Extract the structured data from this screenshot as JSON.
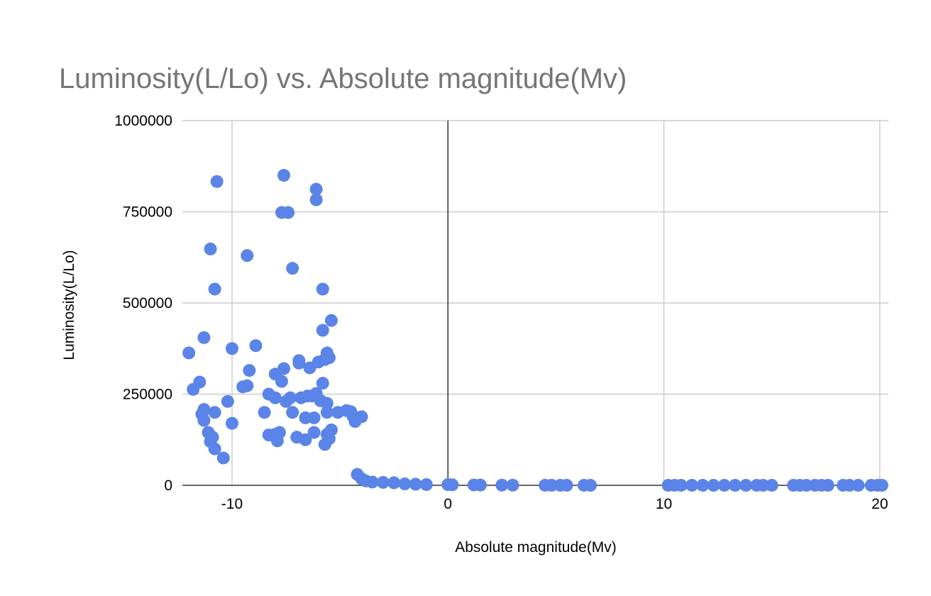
{
  "chart_data": {
    "type": "scatter",
    "title": "Luminosity(L/Lo) vs. Absolute magnitude(Mv)",
    "xlabel": "Absolute magnitude(Mv)",
    "ylabel": "Luminosity(L/Lo)",
    "xlim": [
      -12.3,
      20.4
    ],
    "ylim": [
      0,
      1000000
    ],
    "xticks": [
      -10,
      0,
      10,
      20
    ],
    "yticks": [
      0,
      250000,
      500000,
      750000,
      1000000
    ],
    "xtick_labels": [
      "-10",
      "0",
      "10",
      "20"
    ],
    "ytick_labels": [
      "0",
      "250000",
      "500000",
      "750000",
      "1000000"
    ],
    "grid": true,
    "legend": "none",
    "point_color": "#5b84e8",
    "series": [
      {
        "points": [
          [
            -12.0,
            363000
          ],
          [
            -11.8,
            263000
          ],
          [
            -11.5,
            283000
          ],
          [
            -11.3,
            405000
          ],
          [
            -11.4,
            195000
          ],
          [
            -11.3,
            208000
          ],
          [
            -11.3,
            178000
          ],
          [
            -11.1,
            145000
          ],
          [
            -11.0,
            120000
          ],
          [
            -10.9,
            132000
          ],
          [
            -10.8,
            100000
          ],
          [
            -11.0,
            648000
          ],
          [
            -10.8,
            538000
          ],
          [
            -10.7,
            833000
          ],
          [
            -10.8,
            200000
          ],
          [
            -10.4,
            75000
          ],
          [
            -10.2,
            230000
          ],
          [
            -10.0,
            375000
          ],
          [
            -10.0,
            170000
          ],
          [
            -9.5,
            270000
          ],
          [
            -9.3,
            273000
          ],
          [
            -9.3,
            630000
          ],
          [
            -9.2,
            315000
          ],
          [
            -8.9,
            383000
          ],
          [
            -8.5,
            200000
          ],
          [
            -8.3,
            138000
          ],
          [
            -8.0,
            140000
          ],
          [
            -8.3,
            250000
          ],
          [
            -8.0,
            240000
          ],
          [
            -8.0,
            305000
          ],
          [
            -7.9,
            122000
          ],
          [
            -7.8,
            145000
          ],
          [
            -7.7,
            285000
          ],
          [
            -7.6,
            320000
          ],
          [
            -7.6,
            850000
          ],
          [
            -7.7,
            748000
          ],
          [
            -7.4,
            748000
          ],
          [
            -7.5,
            230000
          ],
          [
            -7.3,
            240000
          ],
          [
            -7.2,
            595000
          ],
          [
            -7.2,
            200000
          ],
          [
            -7.0,
            132000
          ],
          [
            -6.9,
            335000
          ],
          [
            -6.9,
            342000
          ],
          [
            -6.8,
            240000
          ],
          [
            -6.6,
            125000
          ],
          [
            -6.6,
            185000
          ],
          [
            -6.5,
            245000
          ],
          [
            -6.4,
            322000
          ],
          [
            -6.3,
            245000
          ],
          [
            -6.2,
            185000
          ],
          [
            -6.2,
            145000
          ],
          [
            -6.1,
            252000
          ],
          [
            -6.0,
            338000
          ],
          [
            -6.1,
            812000
          ],
          [
            -6.1,
            783000
          ],
          [
            -5.9,
            232000
          ],
          [
            -5.8,
            280000
          ],
          [
            -5.8,
            425000
          ],
          [
            -5.8,
            538000
          ],
          [
            -5.7,
            345000
          ],
          [
            -5.6,
            363000
          ],
          [
            -5.6,
            225000
          ],
          [
            -5.6,
            200000
          ],
          [
            -5.5,
            350000
          ],
          [
            -5.7,
            112000
          ],
          [
            -5.6,
            140000
          ],
          [
            -5.5,
            128000
          ],
          [
            -5.4,
            152000
          ],
          [
            -5.4,
            452000
          ],
          [
            -5.1,
            200000
          ],
          [
            -4.7,
            205000
          ],
          [
            -4.5,
            202000
          ],
          [
            -4.4,
            190000
          ],
          [
            -4.3,
            175000
          ],
          [
            -4.0,
            188000
          ],
          [
            -4.2,
            30000
          ],
          [
            -4.0,
            18000
          ],
          [
            -3.8,
            12000
          ],
          [
            -3.5,
            9000
          ],
          [
            -3.0,
            8000
          ],
          [
            -2.5,
            7000
          ],
          [
            -2.0,
            4000
          ],
          [
            -1.5,
            3000
          ],
          [
            -1.0,
            2000
          ],
          [
            0.0,
            2000
          ],
          [
            0.2,
            1500
          ],
          [
            1.2,
            1000
          ],
          [
            1.5,
            800
          ],
          [
            2.5,
            500
          ],
          [
            3.0,
            400
          ],
          [
            4.5,
            200
          ],
          [
            4.8,
            150
          ],
          [
            5.2,
            100
          ],
          [
            5.5,
            80
          ],
          [
            6.3,
            50
          ],
          [
            6.6,
            40
          ],
          [
            10.2,
            10
          ],
          [
            10.5,
            10
          ],
          [
            10.8,
            10
          ],
          [
            11.3,
            10
          ],
          [
            11.8,
            10
          ],
          [
            12.3,
            10
          ],
          [
            12.8,
            10
          ],
          [
            13.3,
            10
          ],
          [
            13.8,
            10
          ],
          [
            14.3,
            10
          ],
          [
            14.6,
            10
          ],
          [
            15.0,
            10
          ],
          [
            16.0,
            10
          ],
          [
            16.3,
            10
          ],
          [
            16.6,
            10
          ],
          [
            17.0,
            10
          ],
          [
            17.3,
            10
          ],
          [
            17.6,
            10
          ],
          [
            18.3,
            10
          ],
          [
            18.6,
            10
          ],
          [
            19.0,
            10
          ],
          [
            19.6,
            10
          ],
          [
            19.9,
            10
          ],
          [
            20.1,
            10
          ]
        ]
      }
    ]
  }
}
